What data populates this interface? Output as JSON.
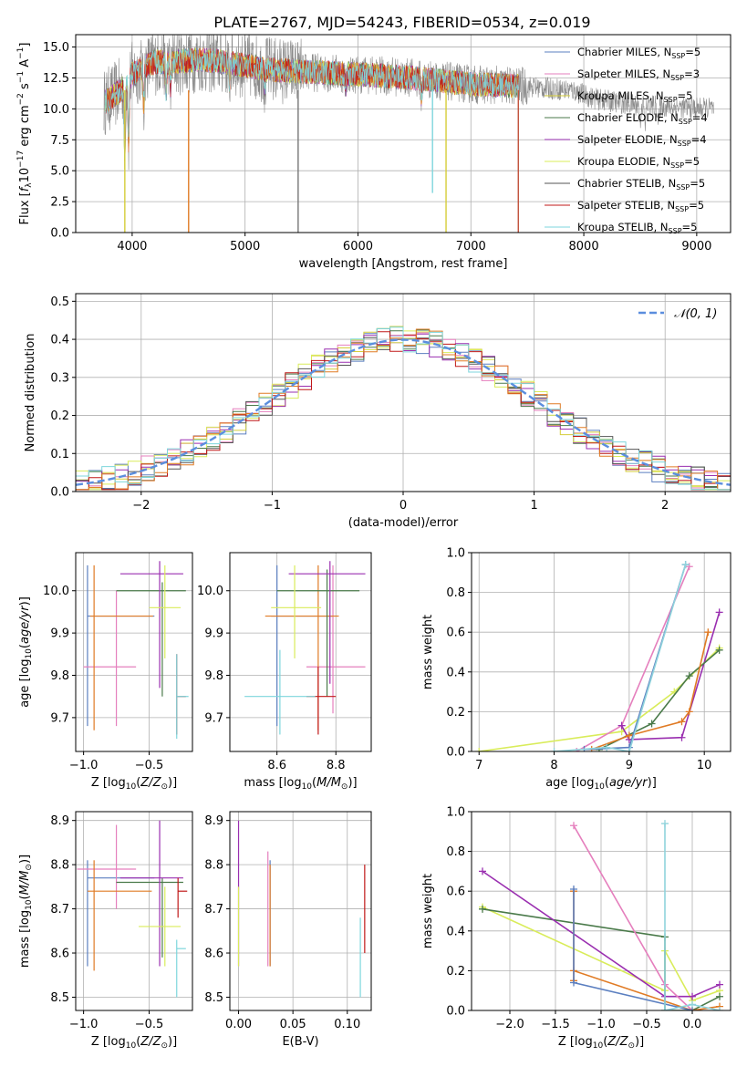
{
  "title": "PLATE=2767, MJD=54243, FIBERID=0534, z=0.019",
  "colors": {
    "Chabrier MILES": "#5b7fc0",
    "Salpeter MILES": "#e57fbd",
    "Kroupa MILES": "#d5cd3a",
    "Chabrier ELODIE": "#4a7a4a",
    "Salpeter ELODIE": "#9a2fb0",
    "Kroupa ELODIE": "#d9ec5a",
    "Chabrier STELIB": "#555555",
    "Salpeter STELIB": "#c01818",
    "Kroupa STELIB": "#7dd6dc",
    "orange": "#e07b25",
    "cyan": "#8fd3dc",
    "gaussian": "#5b8ede"
  },
  "chart_data": [
    {
      "type": "line",
      "id": "spectrum",
      "title": "PLATE=2767, MJD=54243, FIBERID=0534, z=0.019",
      "xlabel": "wavelength [Angstrom, rest frame]",
      "ylabel": "Flux [f_λ 10^-17 erg cm^-2 s^-1 A^-1]",
      "xlim": [
        3500,
        9300
      ],
      "ylim": [
        0,
        16
      ],
      "xticks": [
        4000,
        5000,
        6000,
        7000,
        8000,
        9000
      ],
      "yticks": [
        0.0,
        2.5,
        5.0,
        7.5,
        10.0,
        12.5,
        15.0
      ],
      "ytick_labels": [
        "0.0",
        "2.5",
        "5.0",
        "7.5",
        "10.0",
        "12.5",
        "15.0"
      ],
      "legend": [
        {
          "label": "Chabrier MILES, N",
          "sub": "SSP",
          "tail": "=5",
          "color": "#5b7fc0"
        },
        {
          "label": "Salpeter MILES, N",
          "sub": "SSP",
          "tail": "=3",
          "color": "#e57fbd"
        },
        {
          "label": "Kroupa MILES, N",
          "sub": "SSP",
          "tail": "=5",
          "color": "#d5cd3a"
        },
        {
          "label": "Chabrier ELODIE, N",
          "sub": "SSP",
          "tail": "=4",
          "color": "#4a7a4a"
        },
        {
          "label": "Salpeter ELODIE, N",
          "sub": "SSP",
          "tail": "=4",
          "color": "#9a2fb0"
        },
        {
          "label": "Kroupa ELODIE, N",
          "sub": "SSP",
          "tail": "=5",
          "color": "#d9ec5a"
        },
        {
          "label": "Chabrier STELIB, N",
          "sub": "SSP",
          "tail": "=5",
          "color": "#555555"
        },
        {
          "label": "Salpeter STELIB, N",
          "sub": "SSP",
          "tail": "=5",
          "color": "#c01818"
        },
        {
          "label": "Kroupa STELIB, N",
          "sub": "SSP",
          "tail": "=5",
          "color": "#7dd6dc"
        }
      ],
      "legend_position": "top-right",
      "continuum_knots": [
        [
          3750,
          10.5
        ],
        [
          3900,
          11.5
        ],
        [
          4000,
          12.8
        ],
        [
          4200,
          13.8
        ],
        [
          4400,
          13.8
        ],
        [
          4600,
          14.0
        ],
        [
          4800,
          13.8
        ],
        [
          5000,
          13.5
        ],
        [
          5200,
          13.2
        ],
        [
          5500,
          13.0
        ],
        [
          6000,
          12.8
        ],
        [
          6500,
          12.5
        ],
        [
          7000,
          12.0
        ],
        [
          7500,
          11.8
        ],
        [
          7900,
          11.5
        ],
        [
          8100,
          10.8
        ],
        [
          8400,
          10.4
        ],
        [
          8700,
          10.2
        ],
        [
          8900,
          10.1
        ],
        [
          9150,
          10.0
        ]
      ],
      "drops": [
        {
          "x": 3935,
          "y": 0,
          "color": "#d5cd3a"
        },
        {
          "x": 4500,
          "y": 0,
          "color": "#e07b25"
        },
        {
          "x": 5470,
          "y": 0,
          "color": "#777777"
        },
        {
          "x": 6780,
          "y": 0,
          "color": "#d5cd3a"
        },
        {
          "x": 6660,
          "y": 3.2,
          "color": "#7dd6dc"
        },
        {
          "x": 7420,
          "y": 0,
          "color": "#c0503a"
        }
      ]
    },
    {
      "type": "bar",
      "id": "residuals",
      "xlabel": "(data-model)/error",
      "ylabel": "Normed distribution",
      "xlim": [
        -2.5,
        2.5
      ],
      "ylim": [
        0,
        0.52
      ],
      "xticks": [
        -2,
        -1,
        0,
        1,
        2
      ],
      "xtick_labels": [
        "−2",
        "−1",
        "0",
        "1",
        "2"
      ],
      "yticks": [
        0.0,
        0.1,
        0.2,
        0.3,
        0.4,
        0.5
      ],
      "ytick_labels": [
        "0.0",
        "0.1",
        "0.2",
        "0.3",
        "0.4",
        "0.5"
      ],
      "legend": "𝒩(0, 1)",
      "legend_position": "top-right",
      "bin_width": 0.1,
      "base_gaussian": {
        "mean": 0,
        "sigma": 1
      }
    },
    {
      "type": "scatter",
      "id": "age-vs-Z",
      "xlabel": "Z [log10(Z/Z⊙)]",
      "ylabel": "age [log10(age/yr)]",
      "xlim": [
        -1.06,
        -0.17
      ],
      "ylim": [
        9.62,
        10.09
      ],
      "xticks": [
        -1.0,
        -0.5
      ],
      "xtick_labels": [
        "−1.0",
        "−0.5"
      ],
      "yticks": [
        9.7,
        9.8,
        9.9,
        10.0
      ],
      "ytick_labels": [
        "9.7",
        "9.8",
        "9.9",
        "10.0"
      ],
      "points": [
        {
          "x": -0.97,
          "y": 9.94,
          "ex": [
            -0.97,
            -0.46
          ],
          "ey": [
            9.68,
            10.06
          ],
          "color": "#5b7fc0"
        },
        {
          "x": -0.75,
          "y": 9.82,
          "ex": [
            -1.0,
            -0.6
          ],
          "ey": [
            9.68,
            10.0
          ],
          "color": "#e57fbd"
        },
        {
          "x": -0.92,
          "y": 9.94,
          "ex": [
            -0.95,
            -0.47
          ],
          "ey": [
            9.67,
            10.06
          ],
          "color": "#e07b25"
        },
        {
          "x": -0.4,
          "y": 10.0,
          "ex": [
            -0.75,
            -0.22
          ],
          "ey": [
            9.75,
            10.02
          ],
          "color": "#4a7a4a"
        },
        {
          "x": -0.42,
          "y": 10.04,
          "ex": [
            -0.72,
            -0.24
          ],
          "ey": [
            9.77,
            10.07
          ],
          "color": "#9a2fb0"
        },
        {
          "x": -0.38,
          "y": 9.96,
          "ex": [
            -0.5,
            -0.26
          ],
          "ey": [
            9.84,
            10.06
          ],
          "color": "#d9ec5a"
        },
        {
          "x": -0.29,
          "y": 9.75,
          "ex": [
            -0.29,
            -0.22
          ],
          "ey": [
            9.66,
            9.85
          ],
          "color": "#c01818"
        },
        {
          "x": -0.29,
          "y": 9.75,
          "ex": [
            -0.29,
            -0.2
          ],
          "ey": [
            9.65,
            9.85
          ],
          "color": "#7dd6dc"
        }
      ]
    },
    {
      "type": "scatter",
      "id": "age-vs-mass",
      "xlabel": "mass [log10(M/M⊙)]",
      "ylabel": "",
      "xlim": [
        8.44,
        8.92
      ],
      "ylim": [
        9.62,
        10.09
      ],
      "xticks": [
        8.6,
        8.8
      ],
      "xtick_labels": [
        "8.6",
        "8.8"
      ],
      "yticks": [
        9.7,
        9.8,
        9.9,
        10.0
      ],
      "ytick_labels": [
        "9.7",
        "9.8",
        "9.9",
        "10.0"
      ],
      "points": [
        {
          "x": 8.6,
          "y": 9.94,
          "ex": [
            8.58,
            8.79
          ],
          "ey": [
            9.68,
            10.06
          ],
          "color": "#5b7fc0"
        },
        {
          "x": 8.79,
          "y": 9.82,
          "ex": [
            8.7,
            8.9
          ],
          "ey": [
            9.71,
            10.06
          ],
          "color": "#e57fbd"
        },
        {
          "x": 8.74,
          "y": 9.94,
          "ex": [
            8.56,
            8.81
          ],
          "ey": [
            9.67,
            10.06
          ],
          "color": "#e07b25"
        },
        {
          "x": 8.77,
          "y": 10.0,
          "ex": [
            8.6,
            8.88
          ],
          "ey": [
            9.75,
            10.05
          ],
          "color": "#4a7a4a"
        },
        {
          "x": 8.78,
          "y": 10.04,
          "ex": [
            8.64,
            8.9
          ],
          "ey": [
            9.78,
            10.07
          ],
          "color": "#9a2fb0"
        },
        {
          "x": 8.66,
          "y": 9.96,
          "ex": [
            8.58,
            8.75
          ],
          "ey": [
            9.84,
            10.06
          ],
          "color": "#d9ec5a"
        },
        {
          "x": 8.74,
          "y": 9.75,
          "ex": [
            8.7,
            8.8
          ],
          "ey": [
            9.66,
            9.82
          ],
          "color": "#c01818"
        },
        {
          "x": 8.61,
          "y": 9.75,
          "ex": [
            8.49,
            8.73
          ],
          "ey": [
            9.66,
            9.86
          ],
          "color": "#7dd6dc"
        }
      ]
    },
    {
      "type": "line",
      "id": "massweight-vs-age",
      "xlabel": "age [log10(age/yr)]",
      "ylabel": "mass weight",
      "xlim": [
        6.9,
        10.35
      ],
      "ylim": [
        0,
        1.0
      ],
      "xticks": [
        7,
        8,
        9,
        10
      ],
      "xtick_labels": [
        "7",
        "8",
        "9",
        "10"
      ],
      "yticks": [
        0.0,
        0.2,
        0.4,
        0.6,
        0.8,
        1.0
      ],
      "ytick_labels": [
        "0.0",
        "0.2",
        "0.4",
        "0.6",
        "0.8",
        "1.0"
      ],
      "series": [
        {
          "color": "#d9ec5a",
          "points": [
            [
              7.0,
              0.0
            ],
            [
              8.9,
              0.1
            ],
            [
              9.6,
              0.3
            ],
            [
              10.2,
              0.52
            ]
          ]
        },
        {
          "color": "#e57fbd",
          "points": [
            [
              8.3,
              0.0
            ],
            [
              8.9,
              0.13
            ],
            [
              9.8,
              0.93
            ]
          ]
        },
        {
          "color": "#9a2fb0",
          "points": [
            [
              8.9,
              0.13
            ],
            [
              9.0,
              0.06
            ],
            [
              9.7,
              0.07
            ],
            [
              10.2,
              0.7
            ]
          ]
        },
        {
          "color": "#4a7a4a",
          "points": [
            [
              8.6,
              0.01
            ],
            [
              9.3,
              0.14
            ],
            [
              9.8,
              0.38
            ],
            [
              10.2,
              0.51
            ]
          ]
        },
        {
          "color": "#e07b25",
          "points": [
            [
              8.5,
              0.01
            ],
            [
              9.0,
              0.08
            ],
            [
              9.7,
              0.15
            ],
            [
              9.8,
              0.2
            ],
            [
              10.05,
              0.6
            ]
          ]
        },
        {
          "color": "#5b7fc0",
          "points": [
            [
              8.4,
              0.01
            ],
            [
              9.0,
              0.02
            ],
            [
              9.75,
              0.94
            ]
          ]
        },
        {
          "color": "#8fd3dc",
          "points": [
            [
              8.0,
              0.0
            ],
            [
              8.7,
              0.02
            ],
            [
              9.0,
              0.0
            ],
            [
              9.75,
              0.94
            ]
          ]
        }
      ]
    },
    {
      "type": "scatter",
      "id": "mass-vs-Z",
      "xlabel": "Z [log10(Z/Z⊙)]",
      "ylabel": "mass [log10(M/M⊙)]",
      "xlim": [
        -1.06,
        -0.17
      ],
      "ylim": [
        8.47,
        8.92
      ],
      "xticks": [
        -1.0,
        -0.5
      ],
      "xtick_labels": [
        "−1.0",
        "−0.5"
      ],
      "yticks": [
        8.5,
        8.6,
        8.7,
        8.8,
        8.9
      ],
      "ytick_labels": [
        "8.5",
        "8.6",
        "8.7",
        "8.8",
        "8.9"
      ],
      "points": [
        {
          "x": -0.97,
          "y": 8.77,
          "ex": [
            -0.97,
            -0.46
          ],
          "ey": [
            8.57,
            8.81
          ],
          "color": "#5b7fc0"
        },
        {
          "x": -0.75,
          "y": 8.79,
          "ex": [
            -1.05,
            -0.6
          ],
          "ey": [
            8.7,
            8.89
          ],
          "color": "#e57fbd"
        },
        {
          "x": -0.92,
          "y": 8.74,
          "ex": [
            -0.97,
            -0.48
          ],
          "ey": [
            8.56,
            8.81
          ],
          "color": "#e07b25"
        },
        {
          "x": -0.4,
          "y": 8.76,
          "ex": [
            -0.75,
            -0.24
          ],
          "ey": [
            8.59,
            8.77
          ],
          "color": "#4a7a4a"
        },
        {
          "x": -0.42,
          "y": 8.77,
          "ex": [
            -0.72,
            -0.24
          ],
          "ey": [
            8.57,
            8.9
          ],
          "color": "#9a2fb0"
        },
        {
          "x": -0.38,
          "y": 8.66,
          "ex": [
            -0.58,
            -0.26
          ],
          "ey": [
            8.57,
            8.75
          ],
          "color": "#d9ec5a"
        },
        {
          "x": -0.28,
          "y": 8.74,
          "ex": [
            -0.28,
            -0.21
          ],
          "ey": [
            8.68,
            8.77
          ],
          "color": "#c01818"
        },
        {
          "x": -0.29,
          "y": 8.61,
          "ex": [
            -0.29,
            -0.22
          ],
          "ey": [
            8.5,
            8.63
          ],
          "color": "#7dd6dc"
        }
      ]
    },
    {
      "type": "scatter",
      "id": "mass-vs-ebv",
      "xlabel": "E(B-V)",
      "ylabel": "",
      "xlim": [
        -0.008,
        0.122
      ],
      "ylim": [
        8.47,
        8.92
      ],
      "xticks": [
        0.0,
        0.05,
        0.1
      ],
      "xtick_labels": [
        "0.00",
        "0.05",
        "0.10"
      ],
      "yticks": [
        8.5,
        8.6,
        8.7,
        8.8,
        8.9
      ],
      "ytick_labels": [
        "8.5",
        "8.6",
        "8.7",
        "8.8",
        "8.9"
      ],
      "points": [
        {
          "x": 0.0,
          "y": 8.77,
          "ey": [
            8.57,
            8.9
          ],
          "color": "#9a2fb0"
        },
        {
          "x": 0.0,
          "y": 8.66,
          "ey": [
            8.57,
            8.75
          ],
          "color": "#d9ec5a"
        },
        {
          "x": 0.027,
          "y": 8.79,
          "ey": [
            8.57,
            8.83
          ],
          "color": "#e57fbd"
        },
        {
          "x": 0.029,
          "y": 8.74,
          "ey": [
            8.57,
            8.81
          ],
          "color": "#5b7fc0"
        },
        {
          "x": 0.029,
          "y": 8.74,
          "ey": [
            8.57,
            8.8
          ],
          "color": "#e07b25"
        },
        {
          "x": 0.112,
          "y": 8.61,
          "ey": [
            8.5,
            8.68
          ],
          "color": "#7dd6dc"
        },
        {
          "x": 0.116,
          "y": 8.74,
          "ey": [
            8.6,
            8.8
          ],
          "color": "#c01818"
        }
      ]
    },
    {
      "type": "line",
      "id": "massweight-vs-Z",
      "xlabel": "Z [log10(Z/Z⊙)]",
      "ylabel": "mass weight",
      "xlim": [
        -2.42,
        0.42
      ],
      "ylim": [
        0,
        1.0
      ],
      "xticks": [
        -2.0,
        -1.5,
        -1.0,
        -0.5,
        0.0
      ],
      "xtick_labels": [
        "−2.0",
        "−1.5",
        "−1.0",
        "−0.5",
        "0.0"
      ],
      "yticks": [
        0.0,
        0.2,
        0.4,
        0.6,
        0.8,
        1.0
      ],
      "ytick_labels": [
        "0.0",
        "0.2",
        "0.4",
        "0.6",
        "0.8",
        "1.0"
      ],
      "series": [
        {
          "color": "#d9ec5a",
          "points": [
            [
              -2.3,
              0.52
            ],
            [
              -0.3,
              0.1
            ],
            [
              -0.3,
              0.3
            ],
            [
              0.0,
              0.05
            ],
            [
              0.3,
              0.1
            ]
          ]
        },
        {
          "color": "#4a7a4a",
          "points": [
            [
              -2.3,
              0.51
            ],
            [
              -0.3,
              0.37
            ],
            [
              -0.3,
              0.0
            ],
            [
              0.0,
              0.0
            ],
            [
              0.3,
              0.07
            ]
          ]
        },
        {
          "color": "#9a2fb0",
          "points": [
            [
              -2.3,
              0.7
            ],
            [
              -0.3,
              0.07
            ],
            [
              0.0,
              0.07
            ],
            [
              0.3,
              0.13
            ]
          ]
        },
        {
          "color": "#e57fbd",
          "points": [
            [
              -1.3,
              0.93
            ],
            [
              -0.3,
              0.13
            ],
            [
              0.0,
              0.0
            ]
          ]
        },
        {
          "color": "#e07b25",
          "points": [
            [
              -1.3,
              0.6
            ],
            [
              -1.3,
              0.15
            ],
            [
              -1.3,
              0.2
            ],
            [
              0.0,
              0.0
            ],
            [
              0.3,
              0.02
            ]
          ]
        },
        {
          "color": "#5b7fc0",
          "points": [
            [
              -1.3,
              0.61
            ],
            [
              -1.3,
              0.14
            ],
            [
              0.0,
              0.0
            ]
          ]
        },
        {
          "color": "#8fd3dc",
          "points": [
            [
              -0.3,
              0.94
            ],
            [
              -0.3,
              0.0
            ],
            [
              0.0,
              0.03
            ],
            [
              0.3,
              0.0
            ]
          ]
        }
      ]
    }
  ]
}
